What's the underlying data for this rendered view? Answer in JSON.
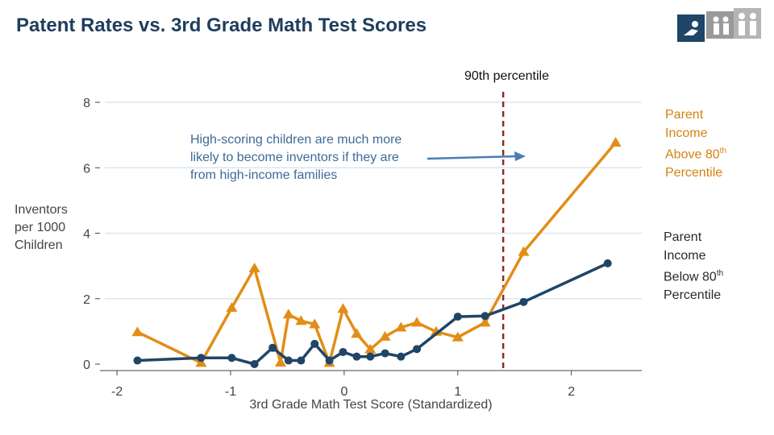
{
  "header": {
    "title": "Patent Rates vs. 3rd Grade Math Test Scores"
  },
  "colors": {
    "above": "#e28d16",
    "below": "#1f4567",
    "cutoff": "#8b2b2b",
    "arrow": "#4a7db5",
    "grid": "#dde5ef"
  },
  "annotation": {
    "line1": "High-scoring children are much more",
    "line2": "likely to become inventors if they are",
    "line3": "from high-income families"
  },
  "percentile_label": "90th percentile",
  "legend": {
    "above": {
      "line1": "Parent",
      "line2": "Income",
      "line3": "Above 80",
      "sup": "th",
      "line4": "Percentile"
    },
    "below": {
      "line1": "Parent",
      "line2": "Income",
      "line3": "Below 80",
      "sup": "th",
      "line4": "Percentile"
    }
  },
  "chart_data": {
    "type": "line",
    "ylabel": [
      "Inventors",
      "per 1000",
      "Children"
    ],
    "xlabel": "3rd Grade Math Test Score (Standardized)",
    "xlim": [
      -2.15,
      2.62
    ],
    "ylim": [
      0,
      8
    ],
    "xticks": [
      -2,
      -1,
      0,
      1,
      2
    ],
    "xticklabels": [
      "-2",
      "-1",
      "0",
      "1",
      "2"
    ],
    "yticks": [
      0,
      2,
      4,
      6,
      8
    ],
    "yticklabels": [
      "0",
      "2",
      "4",
      "6",
      "8"
    ],
    "grid": true,
    "cutoff_x": 1.4,
    "series": [
      {
        "key": "above",
        "marker": "triangle",
        "points": [
          [
            -1.82,
            0.98
          ],
          [
            -1.26,
            0.04
          ],
          [
            -0.99,
            1.72
          ],
          [
            -0.79,
            2.93
          ],
          [
            -0.56,
            0.05
          ],
          [
            -0.49,
            1.52
          ],
          [
            -0.38,
            1.32
          ],
          [
            -0.26,
            1.22
          ],
          [
            -0.13,
            0.04
          ],
          [
            -0.01,
            1.69
          ],
          [
            0.11,
            0.93
          ],
          [
            0.23,
            0.45
          ],
          [
            0.36,
            0.84
          ],
          [
            0.5,
            1.12
          ],
          [
            0.64,
            1.27
          ],
          [
            0.81,
            0.99
          ],
          [
            1.0,
            0.82
          ],
          [
            1.24,
            1.27
          ],
          [
            1.58,
            3.43
          ],
          [
            2.39,
            6.77
          ]
        ]
      },
      {
        "key": "below",
        "marker": "circle",
        "points": [
          [
            -1.82,
            0.11
          ],
          [
            -1.26,
            0.19
          ],
          [
            -0.99,
            0.19
          ],
          [
            -0.79,
            0.0
          ],
          [
            -0.63,
            0.5
          ],
          [
            -0.49,
            0.11
          ],
          [
            -0.38,
            0.11
          ],
          [
            -0.26,
            0.62
          ],
          [
            -0.13,
            0.11
          ],
          [
            -0.01,
            0.37
          ],
          [
            0.11,
            0.23
          ],
          [
            0.23,
            0.23
          ],
          [
            0.36,
            0.33
          ],
          [
            0.5,
            0.23
          ],
          [
            0.64,
            0.46
          ],
          [
            1.0,
            1.45
          ],
          [
            1.24,
            1.47
          ],
          [
            1.58,
            1.9
          ],
          [
            2.32,
            3.08
          ]
        ]
      }
    ]
  }
}
